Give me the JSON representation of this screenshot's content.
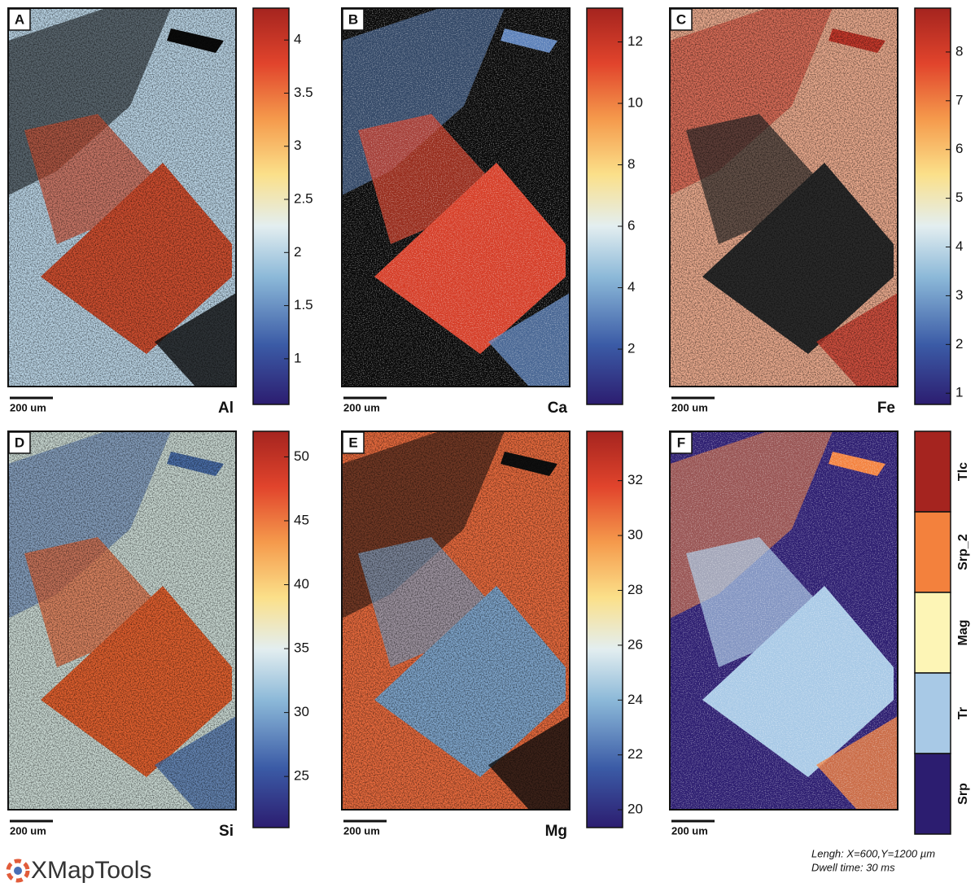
{
  "figure": {
    "panels": [
      {
        "letter": "A",
        "element": "Al",
        "scale_bar": "200 um",
        "colorbar": {
          "lim": [
            0.57,
            4.3
          ],
          "ticks": [
            1,
            1.5,
            2,
            2.5,
            3,
            3.5,
            4
          ]
        }
      },
      {
        "letter": "B",
        "element": "Ca",
        "scale_bar": "200 um",
        "colorbar": {
          "lim": [
            0.2,
            13.1
          ],
          "ticks": [
            2,
            4,
            6,
            8,
            10,
            12
          ]
        }
      },
      {
        "letter": "C",
        "element": "Fe",
        "scale_bar": "200 um",
        "colorbar": {
          "lim": [
            0.77,
            8.9
          ],
          "ticks": [
            1,
            2,
            3,
            4,
            5,
            6,
            7,
            8
          ]
        }
      },
      {
        "letter": "D",
        "element": "Si",
        "scale_bar": "200 um",
        "colorbar": {
          "lim": [
            21,
            52
          ],
          "ticks": [
            25,
            30,
            35,
            40,
            45,
            50
          ]
        }
      },
      {
        "letter": "E",
        "element": "Mg",
        "scale_bar": "200 um",
        "colorbar": {
          "lim": [
            19.35,
            33.8
          ],
          "ticks": [
            20,
            22,
            24,
            26,
            28,
            30,
            32
          ]
        }
      }
    ],
    "phase_panel": {
      "letter": "F",
      "scale_bar": "200 um",
      "legend": [
        {
          "name": "Tlc",
          "color": "#a5241f"
        },
        {
          "name": "Srp_2",
          "color": "#f3813d"
        },
        {
          "name": "Mag",
          "color": "#fdf5b6"
        },
        {
          "name": "Tr",
          "color": "#a8c9e6"
        },
        {
          "name": "Srp",
          "color": "#2c1d70"
        }
      ]
    },
    "footer": {
      "note": [
        "Lengh: X=600,Y=1200 µm",
        "Dwell time: 30 ms"
      ],
      "logo": "XMapTools"
    }
  }
}
